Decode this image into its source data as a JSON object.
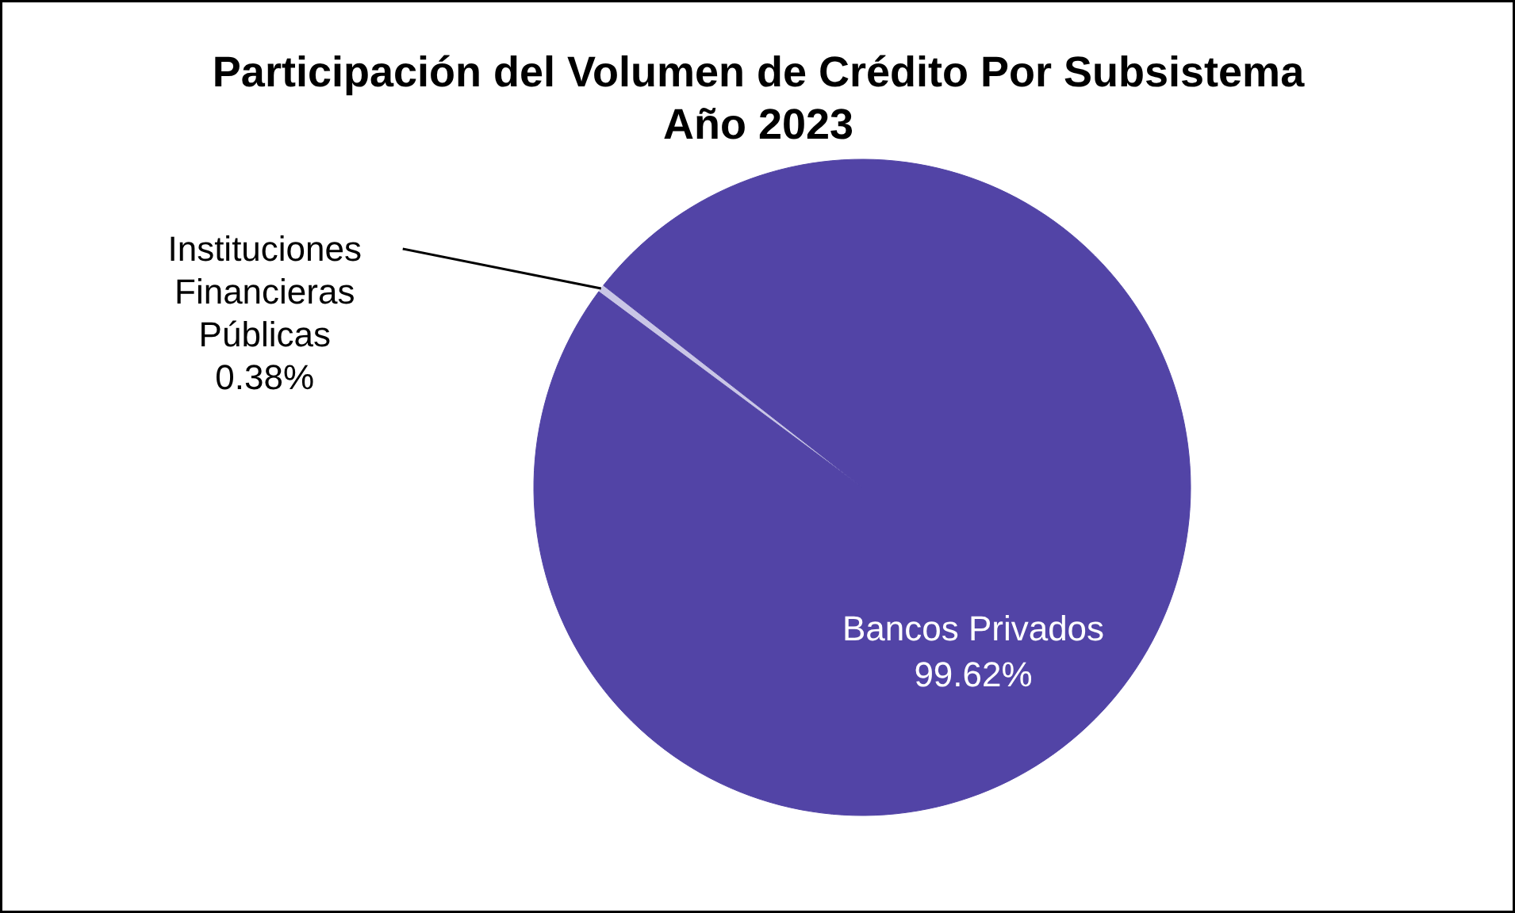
{
  "chart_data": {
    "type": "pie",
    "title": "Participación del Volumen de Crédito Por Subsistema\nAño 2023",
    "categories": [
      "Instituciones\nFinancieras\nPúblicas",
      "Bancos Privados"
    ],
    "values": [
      0.38,
      99.62
    ],
    "colors": [
      "#c9c6e6",
      "#5244a6"
    ],
    "value_labels": [
      "0.38%",
      "99.62%"
    ]
  }
}
